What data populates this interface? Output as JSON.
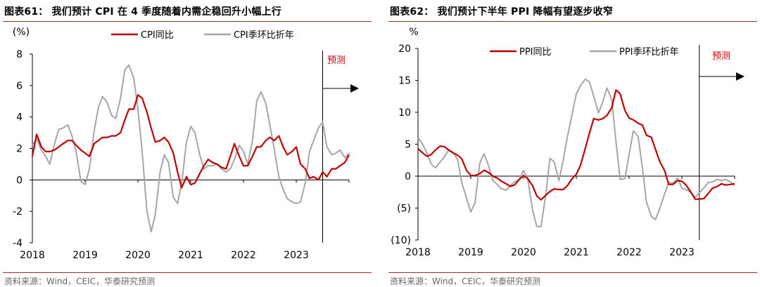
{
  "charts": [
    {
      "panel_title": "图表61： 我们预计 CPI 在 4 季度随着内需企稳回升小幅上行",
      "source": "资料来源：Wind，CEIC，华泰研究预测",
      "unit_label": "(%)",
      "forecast_label": "预测",
      "colors": {
        "series1": "#c00000",
        "series2": "#a6a6a6",
        "accent": "#c00000"
      }
    },
    {
      "panel_title": "图表62： 我们预计下半年 PPI 降幅有望逐步收窄",
      "source": "资料来源：Wind，CEIC，华泰研究预测",
      "unit_label": "%",
      "forecast_label": "预测",
      "colors": {
        "series1": "#c00000",
        "series2": "#a6a6a6",
        "accent": "#c00000"
      }
    }
  ],
  "chart_data": [
    {
      "type": "line",
      "title": "我们预计 CPI 在 4 季度随着内需企稳回升小幅上行",
      "xlabel": "",
      "ylabel": "(%)",
      "ylim": [
        -4,
        8
      ],
      "yticks": [
        "-4",
        "-2",
        "0",
        "2",
        "4",
        "6",
        "8"
      ],
      "xticks": [
        "2018",
        "2019",
        "2020",
        "2021",
        "2022",
        "2023"
      ],
      "x_start": 2018.0,
      "x_end": 2024.0,
      "forecast_start": 2023.5,
      "legend_position": "top",
      "series": [
        {
          "name": "CPI同比",
          "x": [
            2018.0,
            2018.08,
            2018.17,
            2018.25,
            2018.33,
            2018.42,
            2018.5,
            2018.58,
            2018.67,
            2018.75,
            2018.83,
            2018.92,
            2019.0,
            2019.08,
            2019.17,
            2019.25,
            2019.33,
            2019.42,
            2019.5,
            2019.58,
            2019.67,
            2019.75,
            2019.83,
            2019.92,
            2020.0,
            2020.08,
            2020.17,
            2020.25,
            2020.33,
            2020.42,
            2020.5,
            2020.58,
            2020.67,
            2020.75,
            2020.83,
            2020.92,
            2021.0,
            2021.08,
            2021.17,
            2021.25,
            2021.33,
            2021.42,
            2021.5,
            2021.58,
            2021.67,
            2021.75,
            2021.83,
            2021.92,
            2022.0,
            2022.08,
            2022.17,
            2022.25,
            2022.33,
            2022.42,
            2022.5,
            2022.58,
            2022.67,
            2022.75,
            2022.83,
            2022.92,
            2023.0,
            2023.08,
            2023.17,
            2023.25,
            2023.33,
            2023.42,
            2023.5,
            2023.58,
            2023.67,
            2023.75,
            2023.83,
            2023.92,
            2024.0
          ],
          "values": [
            1.5,
            2.9,
            2.1,
            1.8,
            1.8,
            1.9,
            2.1,
            2.3,
            2.5,
            2.5,
            2.2,
            1.9,
            1.7,
            1.5,
            2.3,
            2.5,
            2.7,
            2.7,
            2.8,
            2.8,
            3.0,
            3.8,
            4.5,
            4.5,
            5.4,
            5.2,
            4.3,
            3.3,
            2.4,
            2.5,
            2.7,
            2.4,
            1.7,
            0.5,
            -0.5,
            0.2,
            -0.3,
            -0.2,
            0.4,
            0.9,
            1.3,
            1.1,
            1.0,
            0.8,
            0.7,
            1.5,
            2.3,
            1.5,
            0.9,
            0.9,
            1.5,
            2.1,
            2.1,
            2.5,
            2.7,
            2.5,
            2.8,
            2.1,
            1.6,
            1.8,
            2.1,
            1.0,
            0.7,
            0.1,
            0.2,
            0.0,
            0.5,
            0.2,
            0.7,
            0.7,
            0.9,
            1.1,
            1.6
          ]
        },
        {
          "name": "CPI季环比折年",
          "x": [
            2018.0,
            2018.08,
            2018.17,
            2018.25,
            2018.33,
            2018.42,
            2018.5,
            2018.58,
            2018.67,
            2018.75,
            2018.83,
            2018.92,
            2019.0,
            2019.08,
            2019.17,
            2019.25,
            2019.33,
            2019.42,
            2019.5,
            2019.58,
            2019.67,
            2019.75,
            2019.83,
            2019.92,
            2020.0,
            2020.08,
            2020.17,
            2020.25,
            2020.33,
            2020.42,
            2020.5,
            2020.58,
            2020.67,
            2020.75,
            2020.83,
            2020.92,
            2021.0,
            2021.08,
            2021.17,
            2021.25,
            2021.33,
            2021.42,
            2021.5,
            2021.58,
            2021.67,
            2021.75,
            2021.83,
            2021.92,
            2022.0,
            2022.08,
            2022.17,
            2022.25,
            2022.33,
            2022.42,
            2022.5,
            2022.58,
            2022.67,
            2022.75,
            2022.83,
            2022.92,
            2023.0,
            2023.08,
            2023.17,
            2023.25,
            2023.33,
            2023.42,
            2023.5,
            2023.58,
            2023.67,
            2023.75,
            2023.83,
            2023.92,
            2024.0
          ],
          "values": [
            2.2,
            2.6,
            1.9,
            1.5,
            1.0,
            2.3,
            3.2,
            3.3,
            3.5,
            2.8,
            1.8,
            -0.1,
            -0.3,
            0.7,
            3.1,
            4.6,
            5.3,
            4.9,
            4.1,
            3.9,
            5.2,
            7.0,
            7.3,
            6.5,
            4.5,
            1.8,
            -2.0,
            -3.3,
            -2.2,
            0.5,
            1.6,
            1.1,
            -1.1,
            -1.5,
            -0.2,
            2.4,
            3.4,
            3.0,
            1.6,
            0.7,
            0.9,
            0.9,
            1.0,
            0.7,
            0.5,
            0.7,
            1.3,
            2.2,
            1.8,
            1.0,
            2.5,
            5.0,
            5.6,
            4.9,
            3.5,
            2.0,
            0.2,
            -0.6,
            -1.2,
            -1.4,
            -1.5,
            -1.4,
            -0.2,
            1.8,
            2.5,
            3.3,
            3.7,
            2.1,
            1.6,
            1.7,
            1.9,
            1.4,
            1.7
          ]
        }
      ]
    },
    {
      "type": "line",
      "title": "我们预计下半年 PPI 降幅有望逐步收窄",
      "xlabel": "",
      "ylabel": "%",
      "ylim": [
        -10,
        20
      ],
      "yticks": [
        "(10)",
        "(5)",
        "0",
        "5",
        "10",
        "15",
        "20"
      ],
      "xticks": [
        "2018",
        "2019",
        "2020",
        "2021",
        "2022",
        "2023"
      ],
      "x_start": 2018.0,
      "x_end": 2024.0,
      "forecast_start": 2023.33,
      "legend_position": "top",
      "series": [
        {
          "name": "PPI同比",
          "x": [
            2018.0,
            2018.08,
            2018.17,
            2018.25,
            2018.33,
            2018.42,
            2018.5,
            2018.58,
            2018.67,
            2018.75,
            2018.83,
            2018.92,
            2019.0,
            2019.08,
            2019.17,
            2019.25,
            2019.33,
            2019.42,
            2019.5,
            2019.58,
            2019.67,
            2019.75,
            2019.83,
            2019.92,
            2020.0,
            2020.08,
            2020.17,
            2020.25,
            2020.33,
            2020.42,
            2020.5,
            2020.58,
            2020.67,
            2020.75,
            2020.83,
            2020.92,
            2021.0,
            2021.08,
            2021.17,
            2021.25,
            2021.33,
            2021.42,
            2021.5,
            2021.58,
            2021.67,
            2021.75,
            2021.83,
            2021.92,
            2022.0,
            2022.08,
            2022.17,
            2022.25,
            2022.33,
            2022.42,
            2022.5,
            2022.58,
            2022.67,
            2022.75,
            2022.83,
            2022.92,
            2023.0,
            2023.08,
            2023.17,
            2023.25,
            2023.33,
            2023.42,
            2023.5,
            2023.58,
            2023.67,
            2023.75,
            2023.83,
            2023.92,
            2024.0
          ],
          "values": [
            4.3,
            3.7,
            3.1,
            3.4,
            4.1,
            4.7,
            4.6,
            4.1,
            3.6,
            3.3,
            2.7,
            0.9,
            0.1,
            0.1,
            0.4,
            0.9,
            0.6,
            0.0,
            -0.3,
            -0.8,
            -1.2,
            -1.6,
            -1.4,
            -0.5,
            0.1,
            -0.4,
            -1.5,
            -3.1,
            -3.7,
            -3.0,
            -2.4,
            -2.0,
            -2.1,
            -2.1,
            -1.5,
            -0.4,
            0.3,
            1.7,
            4.4,
            6.8,
            9.0,
            8.8,
            9.0,
            9.5,
            10.7,
            13.5,
            12.9,
            10.3,
            9.1,
            8.8,
            8.3,
            8.0,
            6.4,
            6.1,
            4.2,
            2.3,
            0.9,
            -1.3,
            -1.3,
            -0.7,
            -0.8,
            -1.4,
            -2.5,
            -3.6,
            -3.6,
            -3.5,
            -2.7,
            -1.9,
            -1.6,
            -1.2,
            -1.4,
            -1.3,
            -1.2
          ]
        },
        {
          "name": "PPI季环比折年",
          "x": [
            2018.0,
            2018.08,
            2018.17,
            2018.25,
            2018.33,
            2018.42,
            2018.5,
            2018.58,
            2018.67,
            2018.75,
            2018.83,
            2018.92,
            2019.0,
            2019.08,
            2019.17,
            2019.25,
            2019.33,
            2019.42,
            2019.5,
            2019.58,
            2019.67,
            2019.75,
            2019.83,
            2019.92,
            2020.0,
            2020.08,
            2020.17,
            2020.25,
            2020.33,
            2020.42,
            2020.5,
            2020.58,
            2020.67,
            2020.75,
            2020.83,
            2020.92,
            2021.0,
            2021.08,
            2021.17,
            2021.25,
            2021.33,
            2021.42,
            2021.5,
            2021.58,
            2021.67,
            2021.75,
            2021.83,
            2021.92,
            2022.0,
            2022.08,
            2022.17,
            2022.25,
            2022.33,
            2022.42,
            2022.5,
            2022.58,
            2022.67,
            2022.75,
            2022.83,
            2022.92,
            2023.0,
            2023.08,
            2023.17,
            2023.25,
            2023.33,
            2023.42,
            2023.5,
            2023.58,
            2023.67,
            2023.75,
            2023.83,
            2023.92,
            2024.0
          ],
          "values": [
            6.0,
            5.1,
            3.6,
            1.9,
            1.3,
            2.2,
            3.0,
            4.1,
            3.7,
            2.6,
            -1.0,
            -3.5,
            -5.6,
            -4.2,
            2.0,
            3.5,
            1.8,
            -0.7,
            -1.3,
            -2.0,
            -2.2,
            -1.5,
            -0.9,
            -0.5,
            0.9,
            -0.5,
            -5.3,
            -7.9,
            -7.9,
            -3.0,
            2.8,
            2.2,
            -0.7,
            2.5,
            6.1,
            9.7,
            12.9,
            14.2,
            15.2,
            14.7,
            12.5,
            9.9,
            11.6,
            13.8,
            12.0,
            5.5,
            -0.5,
            -0.4,
            3.4,
            7.1,
            6.2,
            1.4,
            -4.1,
            -6.3,
            -6.8,
            -5.1,
            -2.8,
            -1.0,
            -1.1,
            -0.3,
            -1.9,
            -2.1,
            -2.6,
            -3.3,
            -2.6,
            -1.8,
            -1.0,
            -0.9,
            -0.5,
            -0.7,
            -0.5,
            -0.9,
            -1.5
          ]
        }
      ]
    }
  ]
}
